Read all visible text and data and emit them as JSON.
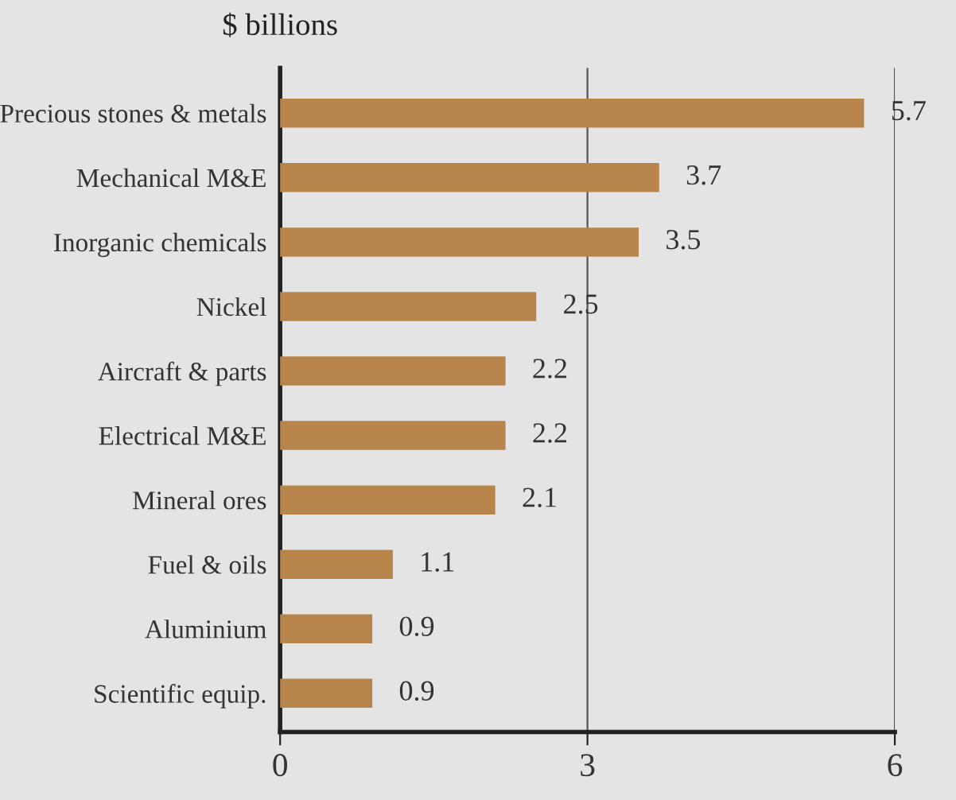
{
  "chart_data": {
    "type": "bar",
    "orientation": "horizontal",
    "title": "$ billions",
    "categories": [
      "Precious stones & metals",
      "Mechanical M&E",
      "Inorganic chemicals",
      "Nickel",
      "Aircraft & parts",
      "Electrical M&E",
      "Mineral ores",
      "Fuel & oils",
      "Aluminium",
      "Scientific equip."
    ],
    "values": [
      5.7,
      3.7,
      3.5,
      2.5,
      2.2,
      2.2,
      2.1,
      1.1,
      0.9,
      0.9
    ],
    "color": "#b7844c",
    "xlim": [
      0,
      6
    ],
    "xticks": [
      0,
      3,
      6
    ],
    "grid": "x",
    "data_labels": true
  }
}
